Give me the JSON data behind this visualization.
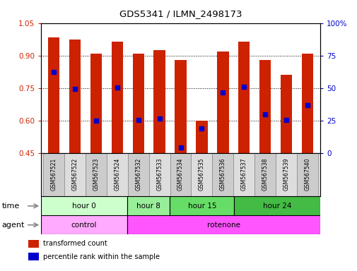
{
  "title": "GDS5341 / ILMN_2498173",
  "samples": [
    "GSM567521",
    "GSM567522",
    "GSM567523",
    "GSM567524",
    "GSM567532",
    "GSM567533",
    "GSM567534",
    "GSM567535",
    "GSM567536",
    "GSM567537",
    "GSM567538",
    "GSM567539",
    "GSM567540"
  ],
  "bar_tops": [
    0.985,
    0.975,
    0.91,
    0.965,
    0.91,
    0.925,
    0.88,
    0.6,
    0.92,
    0.965,
    0.88,
    0.81,
    0.91
  ],
  "bar_bottoms": [
    0.45,
    0.45,
    0.45,
    0.45,
    0.45,
    0.45,
    0.45,
    0.45,
    0.45,
    0.45,
    0.45,
    0.45,
    0.45
  ],
  "blue_values": [
    0.825,
    0.745,
    0.6,
    0.752,
    0.602,
    0.608,
    0.475,
    0.565,
    0.73,
    0.755,
    0.628,
    0.602,
    0.672
  ],
  "ylim": [
    0.45,
    1.05
  ],
  "yticks_left": [
    0.45,
    0.6,
    0.75,
    0.9,
    1.05
  ],
  "yticks_right": [
    0,
    25,
    50,
    75,
    100
  ],
  "bar_color": "#CC2200",
  "blue_color": "#0000CC",
  "time_groups": [
    {
      "label": "hour 0",
      "start": 0,
      "end": 4,
      "color": "#CCFFCC"
    },
    {
      "label": "hour 8",
      "start": 4,
      "end": 6,
      "color": "#99EE99"
    },
    {
      "label": "hour 15",
      "start": 6,
      "end": 9,
      "color": "#66DD66"
    },
    {
      "label": "hour 24",
      "start": 9,
      "end": 13,
      "color": "#44BB44"
    }
  ],
  "agent_groups": [
    {
      "label": "control",
      "start": 0,
      "end": 4,
      "color": "#FFAAFF"
    },
    {
      "label": "rotenone",
      "start": 4,
      "end": 13,
      "color": "#FF55FF"
    }
  ],
  "legend_items": [
    {
      "label": "transformed count",
      "color": "#CC2200"
    },
    {
      "label": "percentile rank within the sample",
      "color": "#0000CC"
    }
  ],
  "n_samples": 13
}
